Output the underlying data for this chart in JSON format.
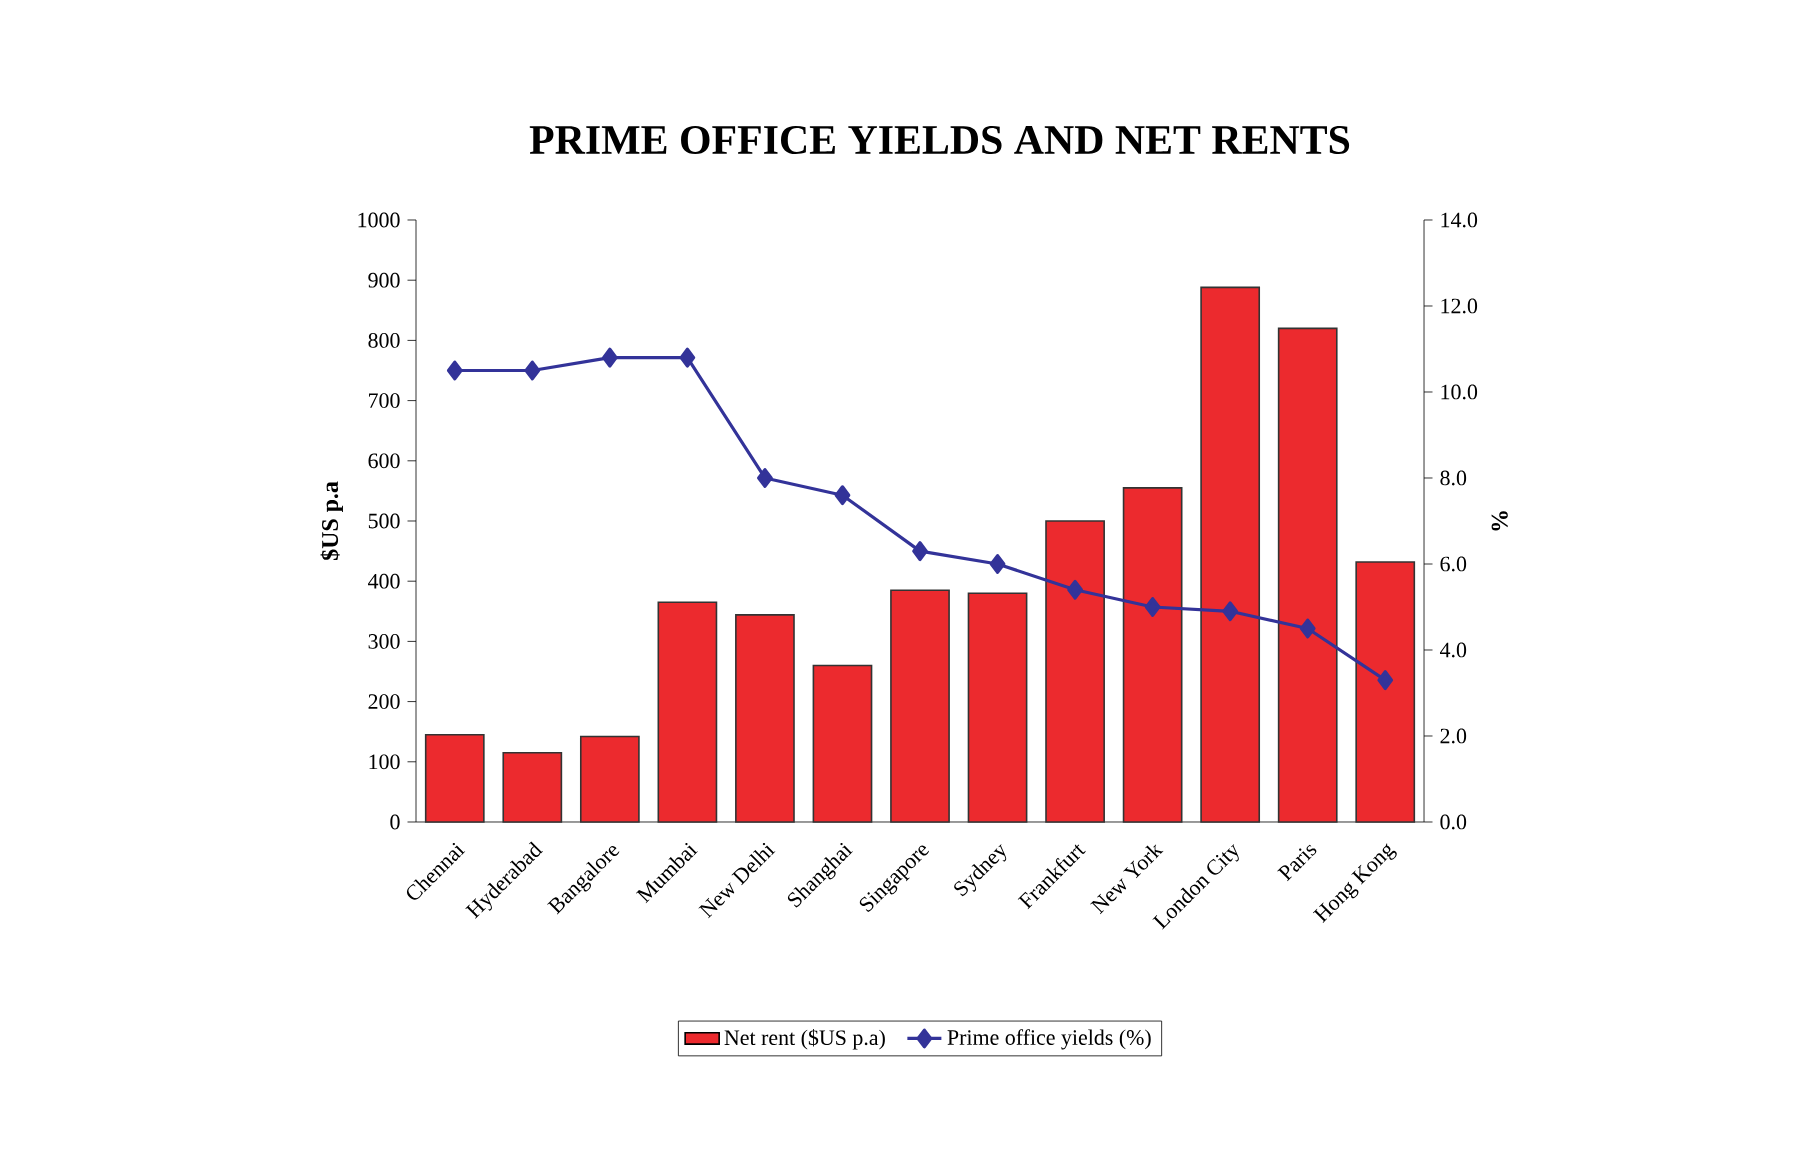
{
  "chart_data": {
    "type": "bar",
    "title": "PRIME OFFICE YIELDS AND NET RENTS",
    "ylabel": "$US p.a",
    "y2label": "%",
    "categories": [
      "Chennai",
      "Hyderabad",
      "Bangalore",
      "Mumbai",
      "New Delhi",
      "Shanghai",
      "Singapore",
      "Sydney",
      "Frankfurt",
      "New York",
      "London City",
      "Paris",
      "Hong Kong"
    ],
    "series": [
      {
        "name": "Net rent ($US p.a)",
        "color": "#ec2a2e",
        "values": [
          145,
          115,
          142,
          365,
          344,
          260,
          385,
          380,
          500,
          555,
          888,
          820,
          432
        ]
      },
      {
        "name": "Prime office yields (%)",
        "type": "line",
        "axis": "y2",
        "color": "#333399",
        "marker": "diamond",
        "values": [
          10.5,
          10.5,
          10.8,
          10.8,
          8.0,
          7.6,
          6.3,
          6.0,
          5.4,
          5.0,
          4.9,
          4.5,
          3.3
        ]
      }
    ],
    "ylim": [
      0,
      1000
    ],
    "yticks": [
      0,
      100,
      200,
      300,
      400,
      500,
      600,
      700,
      800,
      900,
      1000
    ],
    "y2lim": [
      0,
      14
    ],
    "y2ticks": [
      {
        "value": 0,
        "label": "0.0"
      },
      {
        "value": 2,
        "label": "2.0"
      },
      {
        "value": 4,
        "label": "4.0"
      },
      {
        "value": 6,
        "label": "6.0"
      },
      {
        "value": 8,
        "label": "8.0"
      },
      {
        "value": 10,
        "label": "10.0"
      },
      {
        "value": 12,
        "label": "12.0"
      },
      {
        "value": 14,
        "label": "14.0"
      }
    ],
    "legend": "bottom"
  }
}
